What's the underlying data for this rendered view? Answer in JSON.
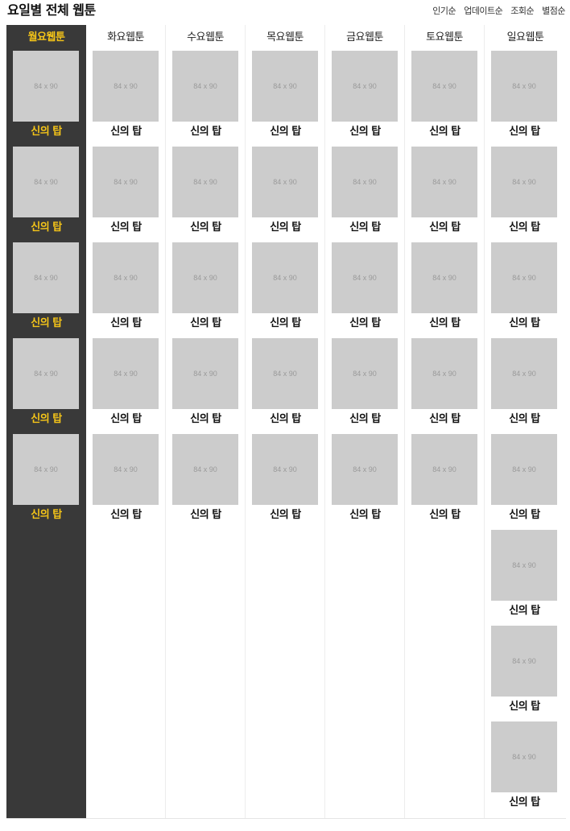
{
  "header": {
    "title": "요일별 전체 웹툰",
    "sort_options": [
      "인기순",
      "업데이트순",
      "조회순",
      "별점순"
    ]
  },
  "colors": {
    "active_column_bg": "#393939",
    "active_text": "#f5c518",
    "thumbnail_placeholder": "#cccccc"
  },
  "days": [
    {
      "label": "월요웹툰",
      "active": true,
      "comics": [
        {
          "title": "신의 탑",
          "thumb": "84 x 90"
        },
        {
          "title": "신의 탑",
          "thumb": "84 x 90"
        },
        {
          "title": "신의 탑",
          "thumb": "84 x 90"
        },
        {
          "title": "신의 탑",
          "thumb": "84 x 90"
        },
        {
          "title": "신의 탑",
          "thumb": "84 x 90"
        }
      ]
    },
    {
      "label": "화요웹툰",
      "active": false,
      "comics": [
        {
          "title": "신의 탑",
          "thumb": "84 x 90"
        },
        {
          "title": "신의 탑",
          "thumb": "84 x 90"
        },
        {
          "title": "신의 탑",
          "thumb": "84 x 90"
        },
        {
          "title": "신의 탑",
          "thumb": "84 x 90"
        },
        {
          "title": "신의 탑",
          "thumb": "84 x 90"
        }
      ]
    },
    {
      "label": "수요웹툰",
      "active": false,
      "comics": [
        {
          "title": "신의 탑",
          "thumb": "84 x 90"
        },
        {
          "title": "신의 탑",
          "thumb": "84 x 90"
        },
        {
          "title": "신의 탑",
          "thumb": "84 x 90"
        },
        {
          "title": "신의 탑",
          "thumb": "84 x 90"
        },
        {
          "title": "신의 탑",
          "thumb": "84 x 90"
        }
      ]
    },
    {
      "label": "목요웹툰",
      "active": false,
      "comics": [
        {
          "title": "신의 탑",
          "thumb": "84 x 90"
        },
        {
          "title": "신의 탑",
          "thumb": "84 x 90"
        },
        {
          "title": "신의 탑",
          "thumb": "84 x 90"
        },
        {
          "title": "신의 탑",
          "thumb": "84 x 90"
        },
        {
          "title": "신의 탑",
          "thumb": "84 x 90"
        }
      ]
    },
    {
      "label": "금요웹툰",
      "active": false,
      "comics": [
        {
          "title": "신의 탑",
          "thumb": "84 x 90"
        },
        {
          "title": "신의 탑",
          "thumb": "84 x 90"
        },
        {
          "title": "신의 탑",
          "thumb": "84 x 90"
        },
        {
          "title": "신의 탑",
          "thumb": "84 x 90"
        },
        {
          "title": "신의 탑",
          "thumb": "84 x 90"
        }
      ]
    },
    {
      "label": "토요웹툰",
      "active": false,
      "comics": [
        {
          "title": "신의 탑",
          "thumb": "84 x 90"
        },
        {
          "title": "신의 탑",
          "thumb": "84 x 90"
        },
        {
          "title": "신의 탑",
          "thumb": "84 x 90"
        },
        {
          "title": "신의 탑",
          "thumb": "84 x 90"
        },
        {
          "title": "신의 탑",
          "thumb": "84 x 90"
        }
      ]
    },
    {
      "label": "일요웹툰",
      "active": false,
      "comics": [
        {
          "title": "신의 탑",
          "thumb": "84 x 90"
        },
        {
          "title": "신의 탑",
          "thumb": "84 x 90"
        },
        {
          "title": "신의 탑",
          "thumb": "84 x 90"
        },
        {
          "title": "신의 탑",
          "thumb": "84 x 90"
        },
        {
          "title": "신의 탑",
          "thumb": "84 x 90"
        },
        {
          "title": "신의 탑",
          "thumb": "84 x 90"
        },
        {
          "title": "신의 탑",
          "thumb": "84 x 90"
        },
        {
          "title": "신의 탑",
          "thumb": "84 x 90"
        }
      ]
    }
  ]
}
